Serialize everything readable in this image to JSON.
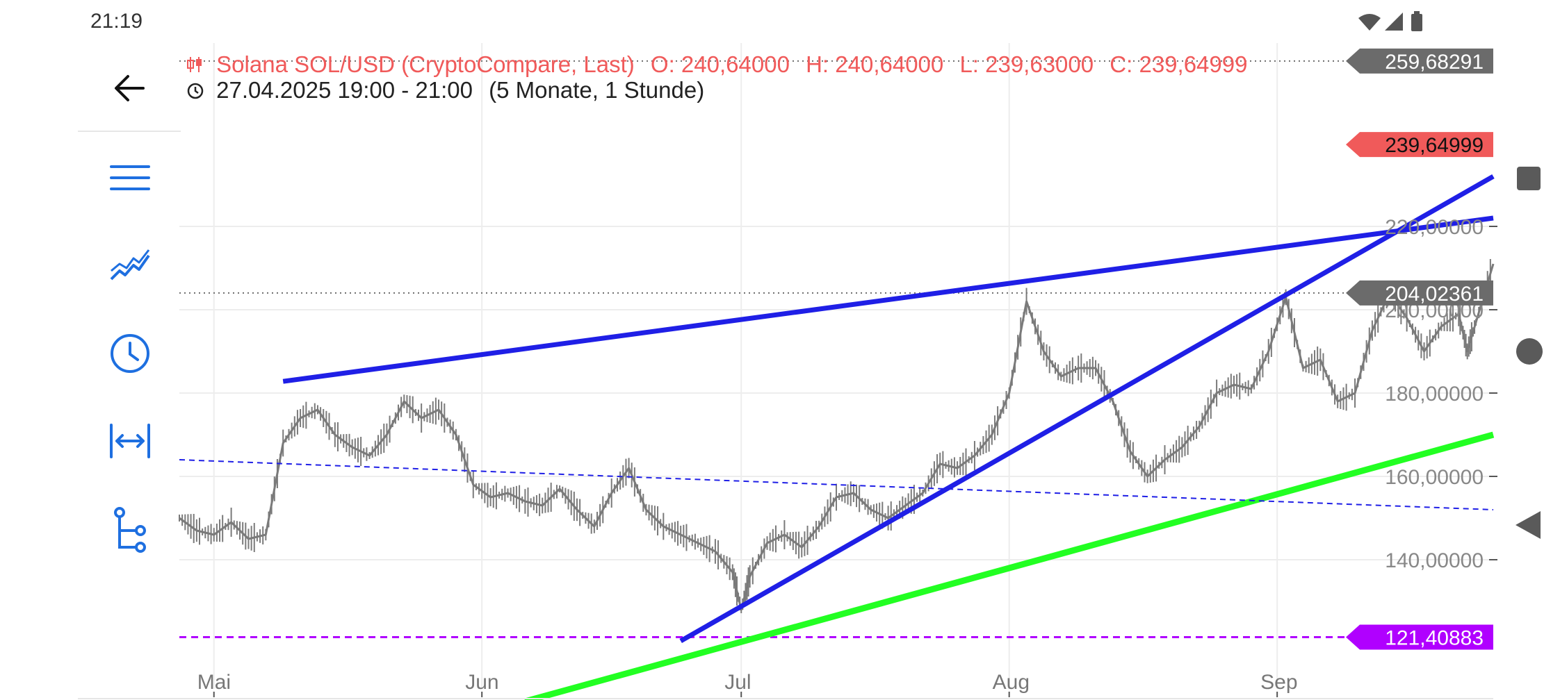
{
  "status_bar": {
    "time": "21:19"
  },
  "sidebar": {
    "items": [
      {
        "icon": "back-arrow-icon"
      },
      {
        "icon": "menu-icon"
      },
      {
        "icon": "chart-line-icon"
      },
      {
        "icon": "clock-icon"
      },
      {
        "icon": "range-icon"
      },
      {
        "icon": "tree-icon"
      }
    ]
  },
  "header": {
    "instrument": "Solana SOL/USD (CryptoCompare, Last)",
    "open": "O: 240,64000",
    "high": "H: 240,64000",
    "low": "L: 239,63000",
    "close": "C: 239,64999",
    "period": "27.04.2025 19:00 - 21:00",
    "span": "(5 Monate, 1 Stunde)"
  },
  "chart_data": {
    "type": "line",
    "title": "Solana SOL/USD (CryptoCompare, Last)",
    "x_type": "date",
    "xlim": [
      "2025-04-27",
      "2025-09-26"
    ],
    "ylim": [
      107,
      264
    ],
    "x_tick_labels": [
      {
        "label": "Mai",
        "x": "2025-05-01"
      },
      {
        "label": "Jun",
        "x": "2025-06-01"
      },
      {
        "label": "Jul",
        "x": "2025-07-01"
      },
      {
        "label": "Aug",
        "x": "2025-08-01"
      },
      {
        "label": "Sep",
        "x": "2025-09-01"
      }
    ],
    "y_tick_labels": [
      "140,00000",
      "160,00000",
      "180,00000",
      "200,00000",
      "220,00000"
    ],
    "y_ticks": [
      140,
      160,
      180,
      200,
      220
    ],
    "grid": true,
    "price_series": {
      "name": "SOL/USD",
      "color": "#7a7a7a",
      "points": [
        [
          "2025-04-27",
          150
        ],
        [
          "2025-04-29",
          147
        ],
        [
          "2025-05-01",
          146
        ],
        [
          "2025-05-03",
          149
        ],
        [
          "2025-05-05",
          145
        ],
        [
          "2025-05-07",
          146
        ],
        [
          "2025-05-09",
          168
        ],
        [
          "2025-05-11",
          174
        ],
        [
          "2025-05-13",
          176
        ],
        [
          "2025-05-15",
          170
        ],
        [
          "2025-05-17",
          167
        ],
        [
          "2025-05-19",
          165
        ],
        [
          "2025-05-21",
          170
        ],
        [
          "2025-05-23",
          178
        ],
        [
          "2025-05-25",
          174
        ],
        [
          "2025-05-27",
          176
        ],
        [
          "2025-05-29",
          170
        ],
        [
          "2025-05-31",
          158
        ],
        [
          "2025-06-02",
          155
        ],
        [
          "2025-06-04",
          156
        ],
        [
          "2025-06-06",
          154
        ],
        [
          "2025-06-08",
          153
        ],
        [
          "2025-06-10",
          157
        ],
        [
          "2025-06-12",
          152
        ],
        [
          "2025-06-14",
          148
        ],
        [
          "2025-06-16",
          156
        ],
        [
          "2025-06-18",
          162
        ],
        [
          "2025-06-20",
          152
        ],
        [
          "2025-06-22",
          148
        ],
        [
          "2025-06-24",
          146
        ],
        [
          "2025-06-26",
          144
        ],
        [
          "2025-06-28",
          142
        ],
        [
          "2025-06-30",
          137
        ],
        [
          "2025-07-01",
          128
        ],
        [
          "2025-07-02",
          136
        ],
        [
          "2025-07-04",
          144
        ],
        [
          "2025-07-06",
          146
        ],
        [
          "2025-07-08",
          143
        ],
        [
          "2025-07-10",
          148
        ],
        [
          "2025-07-12",
          155
        ],
        [
          "2025-07-14",
          156
        ],
        [
          "2025-07-16",
          152
        ],
        [
          "2025-07-18",
          150
        ],
        [
          "2025-07-20",
          153
        ],
        [
          "2025-07-22",
          156
        ],
        [
          "2025-07-24",
          163
        ],
        [
          "2025-07-26",
          162
        ],
        [
          "2025-07-28",
          165
        ],
        [
          "2025-07-30",
          170
        ],
        [
          "2025-08-01",
          180
        ],
        [
          "2025-08-03",
          202
        ],
        [
          "2025-08-05",
          190
        ],
        [
          "2025-08-07",
          184
        ],
        [
          "2025-08-09",
          186
        ],
        [
          "2025-08-11",
          186
        ],
        [
          "2025-08-13",
          178
        ],
        [
          "2025-08-15",
          166
        ],
        [
          "2025-08-17",
          160
        ],
        [
          "2025-08-19",
          164
        ],
        [
          "2025-08-21",
          167
        ],
        [
          "2025-08-23",
          172
        ],
        [
          "2025-08-25",
          180
        ],
        [
          "2025-08-27",
          182
        ],
        [
          "2025-08-29",
          181
        ],
        [
          "2025-08-31",
          190
        ],
        [
          "2025-09-02",
          203
        ],
        [
          "2025-09-04",
          186
        ],
        [
          "2025-09-06",
          188
        ],
        [
          "2025-09-08",
          178
        ],
        [
          "2025-09-10",
          180
        ],
        [
          "2025-09-12",
          195
        ],
        [
          "2025-09-14",
          204
        ],
        [
          "2025-09-16",
          198
        ],
        [
          "2025-09-18",
          190
        ],
        [
          "2025-09-20",
          196
        ],
        [
          "2025-09-22",
          199
        ],
        [
          "2025-09-23",
          190
        ],
        [
          "2025-09-24",
          197
        ],
        [
          "2025-09-26",
          211
        ]
      ]
    },
    "trend_lines": [
      {
        "name": "upper",
        "color": "#1f1fe6",
        "width": 7,
        "dash": false,
        "from": [
          "2025-05-09",
          182.8
        ],
        "to": [
          "2025-09-26",
          222
        ]
      },
      {
        "name": "lower",
        "color": "#1f1fe6",
        "width": 7,
        "dash": false,
        "from": [
          "2025-06-24",
          120.5
        ],
        "to": [
          "2025-09-26",
          232
        ]
      },
      {
        "name": "green",
        "color": "#22ff22",
        "width": 9,
        "dash": false,
        "from": [
          "2025-06-06",
          106
        ],
        "to": [
          "2025-09-26",
          170
        ]
      },
      {
        "name": "dashed",
        "color": "#1f1fe6",
        "width": 2,
        "dash": true,
        "from": [
          "2025-04-27",
          164
        ],
        "to": [
          "2025-09-26",
          152
        ]
      }
    ],
    "price_lines": [
      {
        "value": 259.68291,
        "label": "259,68291",
        "color": "#6b6b6b",
        "style": "dotted"
      },
      {
        "value": 239.64999,
        "label": "239,64999",
        "color": "#f05a5a",
        "style": "none"
      },
      {
        "value": 204.02361,
        "label": "204,02361",
        "color": "#6b6b6b",
        "style": "dotted"
      },
      {
        "value": 121.40883,
        "label": "121,40883",
        "color": "#b000ff",
        "style": "dashed"
      }
    ]
  }
}
